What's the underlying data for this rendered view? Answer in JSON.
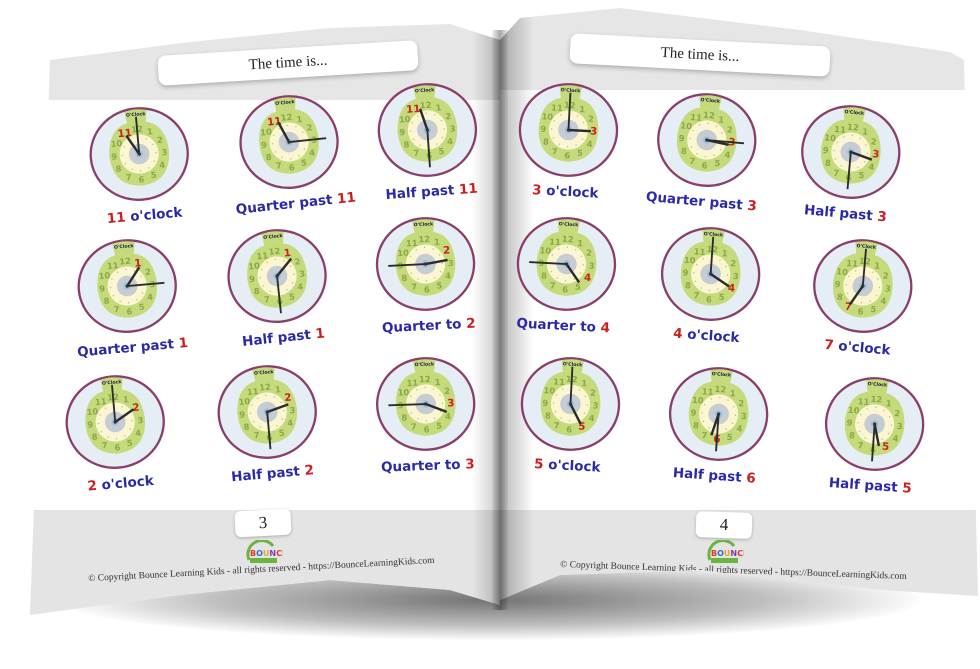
{
  "book": {
    "colors": {
      "label_blue": "#2a2aa8",
      "label_red": "#cc1f1f",
      "clock_green": "#c5da7a",
      "clock_rim": "#8a3f6a",
      "clock_outer": "#e6eef5",
      "clock_inner": "#fbf6d2",
      "band_gray": "#e5e5e5"
    },
    "left_page": {
      "title": "The time is...",
      "page_number": "3",
      "logo_text": "BOUNCE",
      "copyright": "© Copyright Bounce Learning Kids - all rights reserved - https://BounceLearningKids.com",
      "clocks": [
        {
          "prefix": "",
          "num": "11",
          "suffix": " o'clock",
          "hour": 11,
          "minute": 0
        },
        {
          "prefix": "Quarter past ",
          "num": "11",
          "suffix": "",
          "hour": 11,
          "minute": 15
        },
        {
          "prefix": "Half past ",
          "num": "11",
          "suffix": "",
          "hour": 11,
          "minute": 30
        },
        {
          "prefix": "Quarter past ",
          "num": "1",
          "suffix": "",
          "hour": 1,
          "minute": 15
        },
        {
          "prefix": "Half past ",
          "num": "1",
          "suffix": "",
          "hour": 1,
          "minute": 30
        },
        {
          "prefix": "Quarter to ",
          "num": "2",
          "suffix": "",
          "hour": 2,
          "minute": 45
        },
        {
          "prefix": "",
          "num": "2",
          "suffix": " o'clock",
          "hour": 2,
          "minute": 0
        },
        {
          "prefix": "Half past ",
          "num": "2",
          "suffix": "",
          "hour": 2,
          "minute": 30
        },
        {
          "prefix": "Quarter to ",
          "num": "3",
          "suffix": "",
          "hour": 3,
          "minute": 45
        }
      ]
    },
    "right_page": {
      "title": "The time is...",
      "page_number": "4",
      "logo_text": "BOUNCE",
      "copyright": "© Copyright Bounce Learning Kids - all rights reserved - https://BounceLearningKids.com",
      "clocks": [
        {
          "prefix": "",
          "num": "3",
          "suffix": " o'clock",
          "hour": 3,
          "minute": 0
        },
        {
          "prefix": "Quarter past ",
          "num": "3",
          "suffix": "",
          "hour": 3,
          "minute": 15
        },
        {
          "prefix": "Half past ",
          "num": "3",
          "suffix": "",
          "hour": 3,
          "minute": 30
        },
        {
          "prefix": "Quarter to ",
          "num": "4",
          "suffix": "",
          "hour": 4,
          "minute": 45
        },
        {
          "prefix": "",
          "num": "4",
          "suffix": " o'clock",
          "hour": 4,
          "minute": 0
        },
        {
          "prefix": "",
          "num": "7",
          "suffix": " o'clock",
          "hour": 7,
          "minute": 0
        },
        {
          "prefix": "",
          "num": "5",
          "suffix": " o'clock",
          "hour": 5,
          "minute": 0
        },
        {
          "prefix": "Half past ",
          "num": "6",
          "suffix": "",
          "hour": 6,
          "minute": 30
        },
        {
          "prefix": "Half past ",
          "num": "5",
          "suffix": "",
          "hour": 5,
          "minute": 30
        }
      ]
    }
  }
}
